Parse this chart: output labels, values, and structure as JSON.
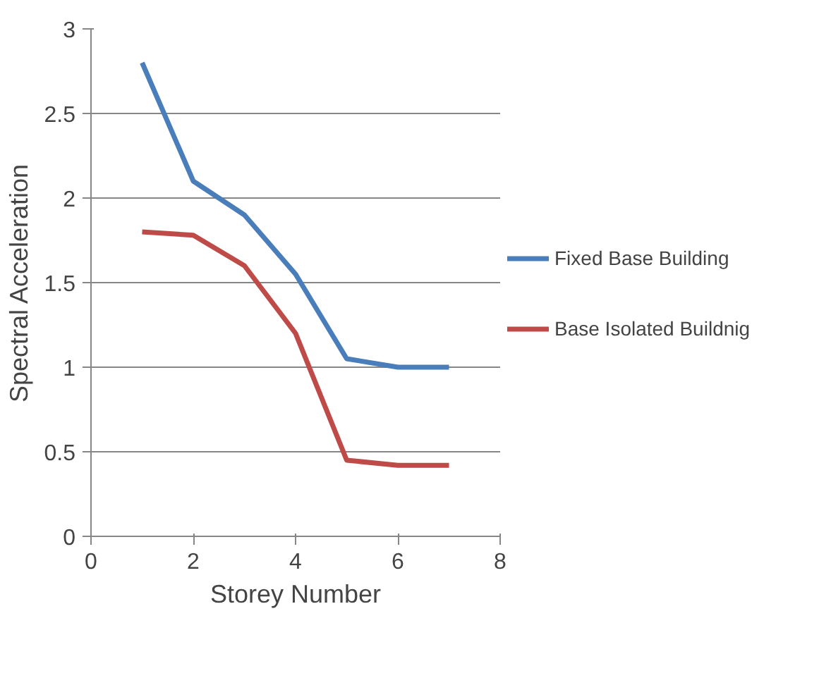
{
  "chart_data": {
    "type": "line",
    "xlabel": "Storey Number",
    "ylabel": "Spectral Acceleration",
    "x": [
      1,
      2,
      3,
      4,
      5,
      6,
      7
    ],
    "series": [
      {
        "name": "Fixed Base Building",
        "color": "#4a7ebb",
        "values": [
          2.8,
          2.1,
          1.9,
          1.55,
          1.05,
          1.0,
          1.0
        ]
      },
      {
        "name": "Base Isolated Buildnig",
        "color": "#be4b48",
        "values": [
          1.8,
          1.78,
          1.6,
          1.2,
          0.45,
          0.42,
          0.42
        ]
      }
    ],
    "xlim": [
      0,
      8
    ],
    "xticks": [
      0,
      2,
      4,
      6,
      8
    ],
    "ylim": [
      0,
      3
    ],
    "yticks": [
      0,
      0.5,
      1,
      1.5,
      2,
      2.5,
      3
    ],
    "grid": "y",
    "legend": "right",
    "marker": "none",
    "line_style": "solid"
  }
}
